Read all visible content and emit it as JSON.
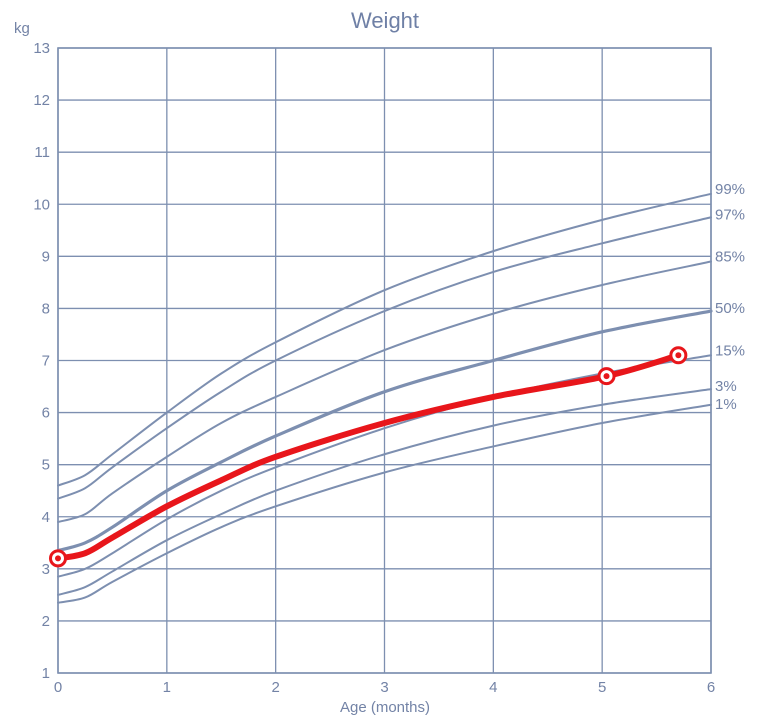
{
  "chart_data": {
    "type": "line",
    "title": "Weight",
    "ylabel": "kg",
    "xlabel": "Age (months)",
    "xlim": [
      0,
      6
    ],
    "ylim": [
      1,
      13
    ],
    "x_ticks": [
      "0",
      "1",
      "2",
      "3",
      "4",
      "5",
      "6"
    ],
    "y_ticks": [
      "1",
      "2",
      "3",
      "4",
      "5",
      "6",
      "7",
      "8",
      "9",
      "10",
      "11",
      "12",
      "13"
    ],
    "grid": true,
    "percentile_x": [
      0,
      0.25,
      0.5,
      1,
      1.5,
      2,
      3,
      4,
      5,
      6
    ],
    "percentiles": [
      {
        "name": "99%",
        "values": [
          4.6,
          4.8,
          5.2,
          6.0,
          6.75,
          7.35,
          8.35,
          9.1,
          9.7,
          10.2
        ]
      },
      {
        "name": "97%",
        "values": [
          4.35,
          4.55,
          4.95,
          5.7,
          6.4,
          7.0,
          7.95,
          8.7,
          9.25,
          9.75
        ]
      },
      {
        "name": "85%",
        "values": [
          3.9,
          4.05,
          4.45,
          5.15,
          5.8,
          6.3,
          7.2,
          7.9,
          8.45,
          8.9
        ]
      },
      {
        "name": "50%",
        "values": [
          3.35,
          3.5,
          3.8,
          4.5,
          5.05,
          5.55,
          6.4,
          7.0,
          7.55,
          7.95
        ]
      },
      {
        "name": "15%",
        "values": [
          2.85,
          3.0,
          3.3,
          3.95,
          4.5,
          4.95,
          5.7,
          6.3,
          6.75,
          7.1
        ]
      },
      {
        "name": "3%",
        "values": [
          2.5,
          2.65,
          2.95,
          3.55,
          4.05,
          4.5,
          5.2,
          5.75,
          6.15,
          6.45
        ]
      },
      {
        "name": "1%",
        "values": [
          2.35,
          2.45,
          2.75,
          3.3,
          3.8,
          4.2,
          4.85,
          5.35,
          5.8,
          6.15
        ]
      }
    ],
    "child": {
      "x": [
        0,
        0.25,
        0.5,
        1,
        1.5,
        2,
        3,
        4,
        5.04,
        5.7
      ],
      "values": [
        3.2,
        3.3,
        3.6,
        4.2,
        4.7,
        5.15,
        5.8,
        6.3,
        6.7,
        7.1
      ],
      "measured_x": [
        0,
        5.04,
        5.7
      ],
      "measured_values": [
        3.2,
        6.7,
        7.1
      ]
    },
    "colors": {
      "grid": "#7d8fb0",
      "percentile": "#7d8fb0",
      "child": "#e8161b",
      "marker_fill": "#ffffff",
      "text": "#7383a6"
    }
  }
}
